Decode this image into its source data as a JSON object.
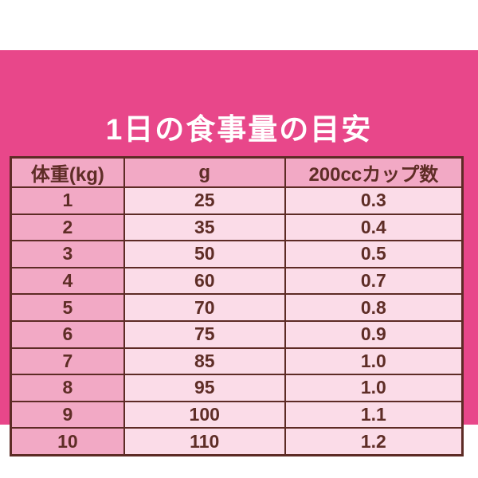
{
  "title": "1日の食事量の目安",
  "table": {
    "headers": [
      "体重(kg)",
      "g",
      "200ccカップ数"
    ],
    "rows": [
      [
        "1",
        "25",
        "0.3"
      ],
      [
        "2",
        "35",
        "0.4"
      ],
      [
        "3",
        "50",
        "0.5"
      ],
      [
        "4",
        "60",
        "0.7"
      ],
      [
        "5",
        "70",
        "0.8"
      ],
      [
        "6",
        "75",
        "0.9"
      ],
      [
        "7",
        "85",
        "1.0"
      ],
      [
        "8",
        "95",
        "1.0"
      ],
      [
        "9",
        "100",
        "1.1"
      ],
      [
        "10",
        "110",
        "1.2"
      ]
    ]
  },
  "chart_data": {
    "type": "table",
    "title": "1日の食事量の目安",
    "columns": [
      "体重(kg)",
      "g",
      "200ccカップ数"
    ],
    "weights_kg": [
      1,
      2,
      3,
      4,
      5,
      6,
      7,
      8,
      9,
      10
    ],
    "grams_per_day": [
      25,
      35,
      50,
      60,
      70,
      75,
      85,
      95,
      100,
      110
    ],
    "cups_200cc": [
      0.3,
      0.4,
      0.5,
      0.7,
      0.8,
      0.9,
      1.0,
      1.0,
      1.1,
      1.2
    ]
  },
  "colors": {
    "panel_pink": "#E8478A",
    "header_pink": "#F2A9C5",
    "cell_pink": "#FBDCE8",
    "border_brown": "#5D2B25",
    "text_brown": "#5E2D26",
    "title_white": "#FFFFFF"
  }
}
